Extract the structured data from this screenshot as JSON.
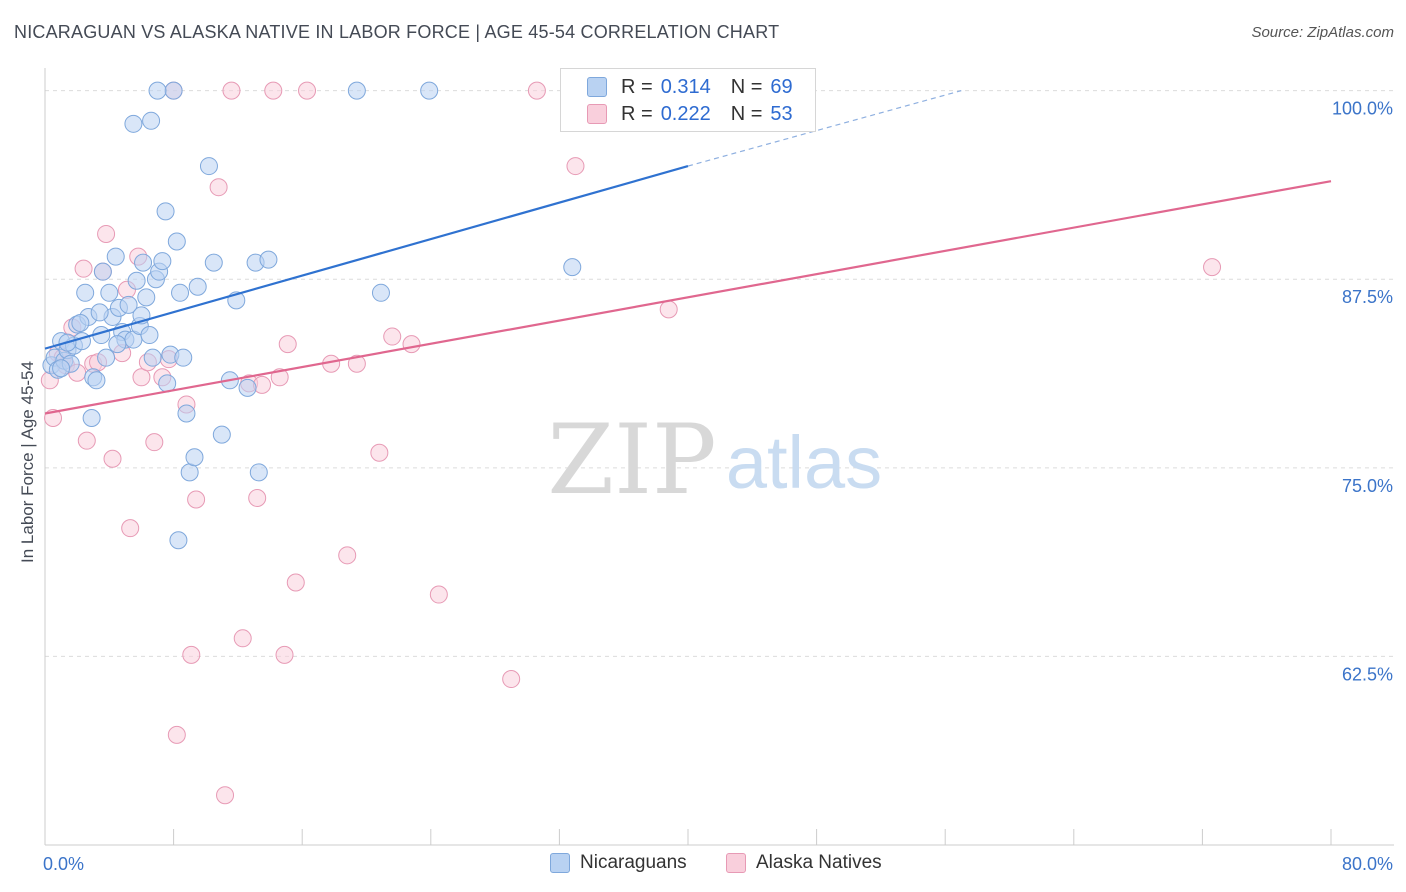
{
  "title": "NICARAGUAN VS ALASKA NATIVE IN LABOR FORCE | AGE 45-54 CORRELATION CHART",
  "source": "Source: ZipAtlas.com",
  "watermark": {
    "zip": "ZIP",
    "atlas": "atlas"
  },
  "legend": {
    "rows": [
      {
        "r_label": "R =",
        "r_value": "0.314",
        "n_label": "N =",
        "n_value": "69"
      },
      {
        "r_label": "R =",
        "r_value": "0.222",
        "n_label": "N =",
        "n_value": "53"
      }
    ]
  },
  "bottom_legend": {
    "series1": "Nicaraguans",
    "series2": "Alaska Natives"
  },
  "chart_data": {
    "type": "scatter",
    "title": "NICARAGUAN VS ALASKA NATIVE IN LABOR FORCE | AGE 45-54 CORRELATION CHART",
    "xlabel": "",
    "ylabel": "In Labor Force | Age 45-54",
    "xlim": [
      0,
      80
    ],
    "ylim": [
      50,
      101.5
    ],
    "x_tick_labels": [
      "0.0%",
      "80.0%"
    ],
    "y_ticks": [
      62.5,
      75.0,
      87.5,
      100.0
    ],
    "y_tick_labels": [
      "62.5%",
      "75.0%",
      "87.5%",
      "100.0%"
    ],
    "colors": {
      "series1": "#2f72d0",
      "series1_fill": "#b9d2f2",
      "series2": "#e0678f",
      "series2_fill": "#f9cfdc"
    },
    "series": [
      {
        "name": "Nicaraguans",
        "r": 0.314,
        "n": 69,
        "trend": {
          "x0": 0,
          "y0": 82.9,
          "x1": 40,
          "y1": 95.0,
          "dash_x1": 57,
          "dash_y1": 100.0
        },
        "points": [
          [
            0.4,
            81.8
          ],
          [
            0.6,
            82.3
          ],
          [
            0.8,
            81.5
          ],
          [
            1.0,
            83.4
          ],
          [
            1.2,
            82.1
          ],
          [
            1.4,
            82.8
          ],
          [
            1.6,
            81.9
          ],
          [
            1.8,
            83.1
          ],
          [
            2.0,
            84.5
          ],
          [
            2.3,
            83.4
          ],
          [
            2.5,
            86.6
          ],
          [
            2.7,
            85.0
          ],
          [
            2.9,
            78.3
          ],
          [
            3.0,
            81.0
          ],
          [
            3.2,
            80.8
          ],
          [
            3.5,
            83.8
          ],
          [
            3.6,
            88.0
          ],
          [
            3.8,
            82.3
          ],
          [
            4.0,
            86.6
          ],
          [
            4.2,
            85.0
          ],
          [
            4.4,
            89.0
          ],
          [
            4.6,
            85.6
          ],
          [
            4.8,
            84.0
          ],
          [
            5.0,
            83.5
          ],
          [
            5.2,
            85.8
          ],
          [
            5.5,
            83.5
          ],
          [
            5.7,
            87.4
          ],
          [
            5.9,
            84.4
          ],
          [
            6.1,
            88.6
          ],
          [
            6.3,
            86.3
          ],
          [
            6.5,
            83.8
          ],
          [
            6.7,
            82.3
          ],
          [
            6.9,
            87.5
          ],
          [
            7.1,
            88.0
          ],
          [
            7.3,
            88.7
          ],
          [
            7.5,
            92.0
          ],
          [
            7.6,
            80.6
          ],
          [
            7.8,
            82.5
          ],
          [
            8.0,
            100.0
          ],
          [
            8.2,
            90.0
          ],
          [
            8.4,
            86.6
          ],
          [
            8.6,
            82.3
          ],
          [
            8.8,
            78.6
          ],
          [
            9.0,
            74.7
          ],
          [
            9.3,
            75.7
          ],
          [
            9.5,
            87.0
          ],
          [
            10.2,
            95.0
          ],
          [
            10.5,
            88.6
          ],
          [
            11.0,
            77.2
          ],
          [
            11.5,
            80.8
          ],
          [
            11.9,
            86.1
          ],
          [
            12.6,
            80.3
          ],
          [
            13.1,
            88.6
          ],
          [
            13.3,
            74.7
          ],
          [
            13.9,
            88.8
          ],
          [
            19.4,
            100.0
          ],
          [
            20.9,
            86.6
          ],
          [
            23.9,
            100.0
          ],
          [
            32.8,
            88.3
          ],
          [
            5.5,
            97.8
          ],
          [
            6.6,
            98.0
          ],
          [
            8.3,
            70.2
          ],
          [
            7.0,
            100.0
          ],
          [
            1.0,
            81.6
          ],
          [
            2.2,
            84.6
          ],
          [
            1.4,
            83.3
          ],
          [
            3.4,
            85.3
          ],
          [
            4.5,
            83.2
          ],
          [
            6.0,
            85.1
          ]
        ]
      },
      {
        "name": "Alaska Natives",
        "r": 0.222,
        "n": 53,
        "trend": {
          "x0": 0,
          "y0": 78.6,
          "x1": 80,
          "y1": 94.0
        },
        "points": [
          [
            0.3,
            80.8
          ],
          [
            0.5,
            78.3
          ],
          [
            0.8,
            82.6
          ],
          [
            1.1,
            82.3
          ],
          [
            1.3,
            81.8
          ],
          [
            1.7,
            84.3
          ],
          [
            2.0,
            81.3
          ],
          [
            2.6,
            76.8
          ],
          [
            3.0,
            81.9
          ],
          [
            3.3,
            82.0
          ],
          [
            3.6,
            88.0
          ],
          [
            3.8,
            90.5
          ],
          [
            4.2,
            75.6
          ],
          [
            4.8,
            82.6
          ],
          [
            5.1,
            86.8
          ],
          [
            5.3,
            71.0
          ],
          [
            5.8,
            89.0
          ],
          [
            6.0,
            81.0
          ],
          [
            6.4,
            82.0
          ],
          [
            6.8,
            76.7
          ],
          [
            7.3,
            81.0
          ],
          [
            7.7,
            82.2
          ],
          [
            8.2,
            57.3
          ],
          [
            8.8,
            79.2
          ],
          [
            9.1,
            62.6
          ],
          [
            9.4,
            72.9
          ],
          [
            10.8,
            93.6
          ],
          [
            11.2,
            53.3
          ],
          [
            11.6,
            100.0
          ],
          [
            12.3,
            63.7
          ],
          [
            12.7,
            80.6
          ],
          [
            13.2,
            73.0
          ],
          [
            14.2,
            100.0
          ],
          [
            14.6,
            81.0
          ],
          [
            14.9,
            62.6
          ],
          [
            15.1,
            83.2
          ],
          [
            15.6,
            67.4
          ],
          [
            16.3,
            100.0
          ],
          [
            17.8,
            81.9
          ],
          [
            18.8,
            69.2
          ],
          [
            19.4,
            81.9
          ],
          [
            20.8,
            76.0
          ],
          [
            21.6,
            83.7
          ],
          [
            22.8,
            83.2
          ],
          [
            24.5,
            66.6
          ],
          [
            29.0,
            61.0
          ],
          [
            30.6,
            100.0
          ],
          [
            33.0,
            95.0
          ],
          [
            38.8,
            85.5
          ],
          [
            72.6,
            88.3
          ],
          [
            8.0,
            100.0
          ],
          [
            13.5,
            80.5
          ],
          [
            2.4,
            88.2
          ]
        ]
      }
    ]
  }
}
